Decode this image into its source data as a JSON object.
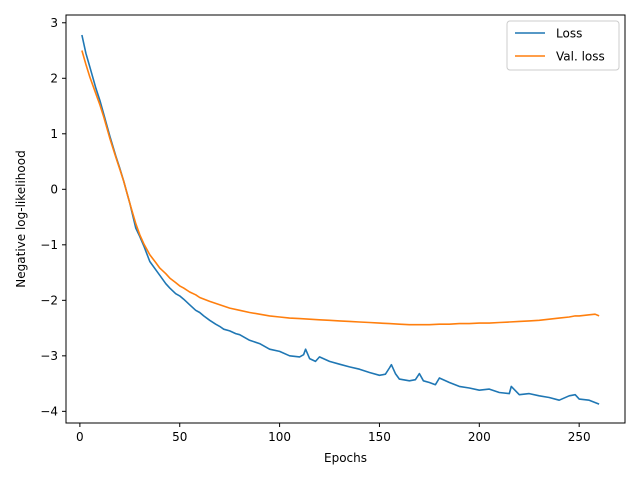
{
  "chart_data": {
    "type": "line",
    "title": "",
    "xlabel": "Epochs",
    "ylabel": "Negative log-likelihood",
    "xlim": [
      -6.95,
      272.95
    ],
    "ylim": [
      -4.21,
      3.14
    ],
    "xticks": [
      0,
      50,
      100,
      150,
      200,
      250
    ],
    "yticks": [
      -4,
      -3,
      -2,
      -1,
      0,
      1,
      2,
      3
    ],
    "xtick_labels": [
      "0",
      "50",
      "100",
      "150",
      "200",
      "250"
    ],
    "ytick_labels": [
      "−4",
      "−3",
      "−2",
      "−1",
      "0",
      "1",
      "2",
      "3"
    ],
    "grid": false,
    "legend_position": "top-right",
    "series": [
      {
        "name": "Loss",
        "color": "#1f77b4",
        "x": [
          1,
          3,
          5,
          8,
          10,
          12,
          15,
          18,
          20,
          22,
          25,
          28,
          30,
          32,
          35,
          38,
          40,
          43,
          45,
          48,
          50,
          52,
          55,
          58,
          60,
          62,
          65,
          68,
          70,
          72,
          75,
          78,
          80,
          85,
          90,
          95,
          100,
          105,
          110,
          112,
          113,
          115,
          118,
          120,
          125,
          130,
          135,
          140,
          145,
          150,
          153,
          155,
          156,
          158,
          160,
          165,
          168,
          170,
          172,
          175,
          178,
          180,
          185,
          190,
          195,
          200,
          205,
          210,
          215,
          216,
          220,
          225,
          230,
          235,
          240,
          245,
          248,
          250,
          255,
          260
        ],
        "values": [
          2.78,
          2.45,
          2.2,
          1.82,
          1.6,
          1.35,
          0.96,
          0.6,
          0.38,
          0.14,
          -0.25,
          -0.7,
          -0.85,
          -1.02,
          -1.3,
          -1.45,
          -1.55,
          -1.7,
          -1.78,
          -1.88,
          -1.92,
          -1.98,
          -2.08,
          -2.18,
          -2.22,
          -2.28,
          -2.36,
          -2.43,
          -2.47,
          -2.52,
          -2.55,
          -2.6,
          -2.62,
          -2.72,
          -2.78,
          -2.88,
          -2.92,
          -3.0,
          -3.02,
          -2.98,
          -2.88,
          -3.05,
          -3.1,
          -3.02,
          -3.1,
          -3.15,
          -3.2,
          -3.24,
          -3.3,
          -3.35,
          -3.33,
          -3.22,
          -3.16,
          -3.32,
          -3.42,
          -3.45,
          -3.43,
          -3.32,
          -3.45,
          -3.48,
          -3.52,
          -3.4,
          -3.48,
          -3.55,
          -3.58,
          -3.62,
          -3.6,
          -3.66,
          -3.68,
          -3.55,
          -3.7,
          -3.68,
          -3.72,
          -3.75,
          -3.8,
          -3.72,
          -3.7,
          -3.78,
          -3.8,
          -3.87
        ]
      },
      {
        "name": "Val. loss",
        "color": "#ff7f0e",
        "x": [
          1,
          3,
          5,
          8,
          10,
          12,
          15,
          18,
          20,
          22,
          25,
          28,
          30,
          32,
          35,
          38,
          40,
          43,
          45,
          48,
          50,
          52,
          55,
          58,
          60,
          65,
          70,
          75,
          80,
          85,
          90,
          95,
          100,
          105,
          110,
          115,
          120,
          125,
          130,
          135,
          140,
          145,
          150,
          155,
          160,
          165,
          170,
          175,
          180,
          185,
          190,
          195,
          200,
          205,
          210,
          215,
          220,
          225,
          230,
          235,
          240,
          245,
          248,
          250,
          255,
          258,
          260
        ],
        "values": [
          2.5,
          2.25,
          2.02,
          1.72,
          1.52,
          1.3,
          0.92,
          0.58,
          0.36,
          0.14,
          -0.25,
          -0.62,
          -0.82,
          -0.98,
          -1.18,
          -1.32,
          -1.42,
          -1.52,
          -1.6,
          -1.68,
          -1.74,
          -1.78,
          -1.85,
          -1.9,
          -1.95,
          -2.02,
          -2.08,
          -2.14,
          -2.18,
          -2.22,
          -2.25,
          -2.28,
          -2.3,
          -2.32,
          -2.33,
          -2.34,
          -2.35,
          -2.36,
          -2.37,
          -2.38,
          -2.39,
          -2.4,
          -2.41,
          -2.42,
          -2.43,
          -2.44,
          -2.44,
          -2.44,
          -2.43,
          -2.43,
          -2.42,
          -2.42,
          -2.41,
          -2.41,
          -2.4,
          -2.39,
          -2.38,
          -2.37,
          -2.36,
          -2.34,
          -2.32,
          -2.3,
          -2.28,
          -2.28,
          -2.26,
          -2.25,
          -2.28
        ]
      }
    ]
  }
}
